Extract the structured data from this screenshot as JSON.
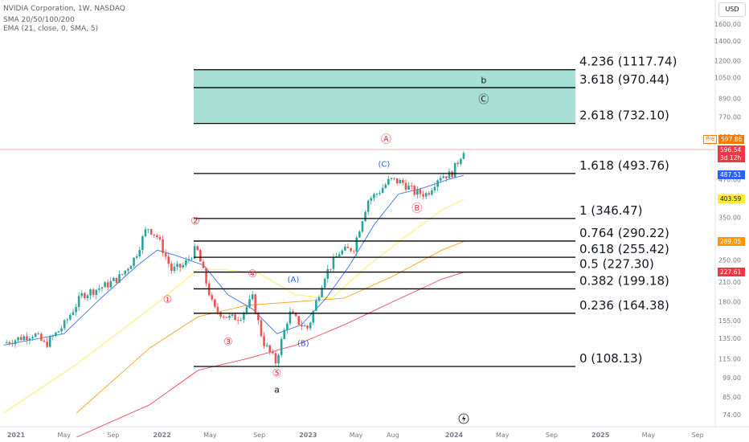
{
  "header": {
    "title": "NVIDIA Corporation, 1W, NASDAQ",
    "indicator1": "SMA 20/50/100/200",
    "indicator2": "EMA (21, close, 0, SMA, 5)"
  },
  "currency": "USD",
  "price_tags": {
    "pre_label": "Pre",
    "pre_value": "597.86",
    "last_value": "596.54",
    "countdown": "3d 12h",
    "sma20": "487.51",
    "sma50": "403.59",
    "sma100": "289.05",
    "sma200": "227.61"
  },
  "colors": {
    "up": "#26a69a",
    "down": "#ef5350",
    "ema21": "#2962ff",
    "sma50": "#ffeb3b",
    "sma100": "#ff9800",
    "sma200": "#f23645",
    "zone_fill": "#a8dfd4",
    "fib_line": "#000000"
  },
  "chart_data": {
    "type": "candlestick",
    "title": "NVIDIA Corporation, 1W, NASDAQ",
    "y_scale": "log",
    "ylim": [
      70,
      1700
    ],
    "y_ticks": [
      1600,
      1400,
      1200,
      1050,
      890,
      770,
      660,
      570,
      470,
      400,
      350,
      290,
      250,
      210,
      180,
      155,
      135,
      115,
      99,
      85,
      74
    ],
    "x_ticks": [
      "2021",
      "May",
      "Sep",
      "2022",
      "May",
      "Sep",
      "2023",
      "May",
      "Aug",
      "2024",
      "May",
      "Sep",
      "2025",
      "May",
      "Sep"
    ],
    "x_tick_dates": [
      "2021-01-01",
      "2021-05-01",
      "2021-09-01",
      "2022-01-01",
      "2022-05-01",
      "2022-09-01",
      "2023-01-01",
      "2023-05-01",
      "2023-08-01",
      "2024-01-01",
      "2024-05-01",
      "2024-09-01",
      "2025-01-01",
      "2025-05-01",
      "2025-09-01"
    ],
    "fib_levels": [
      {
        "ratio": "4.236",
        "value": 1117.74,
        "label": "4.236 (1117.74)"
      },
      {
        "ratio": "3.618",
        "value": 970.44,
        "label": "3.618 (970.44)"
      },
      {
        "ratio": "2.618",
        "value": 732.1,
        "label": "2.618 (732.10)"
      },
      {
        "ratio": "1.618",
        "value": 493.76,
        "label": "1.618 (493.76)"
      },
      {
        "ratio": "1",
        "value": 346.47,
        "label": "1 (346.47)"
      },
      {
        "ratio": "0.764",
        "value": 290.22,
        "label": "0.764 (290.22)"
      },
      {
        "ratio": "0.618",
        "value": 255.42,
        "label": "0.618 (255.42)"
      },
      {
        "ratio": "0.5",
        "value": 227.3,
        "label": "0.5 (227.30)"
      },
      {
        "ratio": "0.382",
        "value": 199.18,
        "label": "0.382 (199.18)"
      },
      {
        "ratio": "0.236",
        "value": 164.38,
        "label": "0.236 (164.38)"
      },
      {
        "ratio": "0",
        "value": 108.13,
        "label": "0 (108.13)"
      }
    ],
    "target_zone": [
      732.1,
      1117.74
    ],
    "wave_labels": [
      {
        "text": "①",
        "date": "2022-01-15",
        "price": 178,
        "style": "red"
      },
      {
        "text": "②",
        "date": "2022-03-25",
        "price": 330,
        "style": "red"
      },
      {
        "text": "③",
        "date": "2022-06-15",
        "price": 128,
        "style": "red"
      },
      {
        "text": "④",
        "date": "2022-08-15",
        "price": 218,
        "style": "red"
      },
      {
        "text": "⑤",
        "date": "2022-10-15",
        "price": 100,
        "style": "red"
      },
      {
        "text": "a",
        "date": "2022-10-15",
        "price": 88,
        "style": "black"
      },
      {
        "text": "(A)",
        "date": "2022-11-25",
        "price": 210,
        "style": "blue"
      },
      {
        "text": "(B)",
        "date": "2022-12-20",
        "price": 127,
        "style": "blue"
      },
      {
        "text": "(C)",
        "date": "2023-07-10",
        "price": 520,
        "style": "blue"
      },
      {
        "text": "Ⓐ",
        "date": "2023-07-15",
        "price": 630,
        "style": "red"
      },
      {
        "text": "Ⓑ",
        "date": "2023-09-30",
        "price": 365,
        "style": "red"
      },
      {
        "text": "b",
        "date": "2024-03-15",
        "price": 1005,
        "style": "black"
      },
      {
        "text": "Ⓒ",
        "date": "2024-03-15",
        "price": 860,
        "style": "gray"
      }
    ],
    "anchor_points": [
      {
        "date": "2020-12-01",
        "close": 130
      },
      {
        "date": "2021-02-15",
        "close": 140
      },
      {
        "date": "2021-03-15",
        "close": 128
      },
      {
        "date": "2021-05-01",
        "close": 150
      },
      {
        "date": "2021-06-15",
        "close": 190
      },
      {
        "date": "2021-08-15",
        "close": 205
      },
      {
        "date": "2021-09-20",
        "close": 220
      },
      {
        "date": "2021-10-25",
        "close": 255
      },
      {
        "date": "2021-11-25",
        "close": 325
      },
      {
        "date": "2021-12-20",
        "close": 300
      },
      {
        "date": "2022-01-25",
        "close": 230
      },
      {
        "date": "2022-02-25",
        "close": 240
      },
      {
        "date": "2022-03-28",
        "close": 275
      },
      {
        "date": "2022-05-10",
        "close": 170
      },
      {
        "date": "2022-06-20",
        "close": 158
      },
      {
        "date": "2022-07-15",
        "close": 160
      },
      {
        "date": "2022-08-15",
        "close": 185
      },
      {
        "date": "2022-09-10",
        "close": 132
      },
      {
        "date": "2022-10-12",
        "close": 112
      },
      {
        "date": "2022-11-15",
        "close": 165
      },
      {
        "date": "2022-12-15",
        "close": 150
      },
      {
        "date": "2023-01-01",
        "close": 146
      },
      {
        "date": "2023-02-10",
        "close": 220
      },
      {
        "date": "2023-03-20",
        "close": 265
      },
      {
        "date": "2023-04-25",
        "close": 275
      },
      {
        "date": "2023-05-30",
        "close": 400
      },
      {
        "date": "2023-06-25",
        "close": 425
      },
      {
        "date": "2023-07-25",
        "close": 470
      },
      {
        "date": "2023-08-25",
        "close": 460
      },
      {
        "date": "2023-09-25",
        "close": 425
      },
      {
        "date": "2023-10-25",
        "close": 420
      },
      {
        "date": "2023-11-25",
        "close": 485
      },
      {
        "date": "2023-12-25",
        "close": 490
      },
      {
        "date": "2024-01-10",
        "close": 540
      },
      {
        "date": "2024-01-25",
        "close": 597
      }
    ],
    "sma50": [
      {
        "date": "2020-12-01",
        "value": 75
      },
      {
        "date": "2021-06-01",
        "value": 110
      },
      {
        "date": "2021-12-01",
        "value": 170
      },
      {
        "date": "2022-04-01",
        "value": 232
      },
      {
        "date": "2022-06-01",
        "value": 232
      },
      {
        "date": "2022-09-01",
        "value": 225
      },
      {
        "date": "2022-12-01",
        "value": 190
      },
      {
        "date": "2023-03-01",
        "value": 185
      },
      {
        "date": "2023-06-01",
        "value": 240
      },
      {
        "date": "2023-09-01",
        "value": 300
      },
      {
        "date": "2023-12-01",
        "value": 370
      },
      {
        "date": "2024-01-25",
        "value": 403
      }
    ],
    "sma100": [
      {
        "date": "2021-06-01",
        "value": 75
      },
      {
        "date": "2021-12-01",
        "value": 125
      },
      {
        "date": "2022-04-01",
        "value": 160
      },
      {
        "date": "2022-08-01",
        "value": 175
      },
      {
        "date": "2022-12-01",
        "value": 180
      },
      {
        "date": "2023-04-01",
        "value": 185
      },
      {
        "date": "2023-08-01",
        "value": 220
      },
      {
        "date": "2023-12-01",
        "value": 270
      },
      {
        "date": "2024-01-25",
        "value": 289
      }
    ],
    "sma200": [
      {
        "date": "2021-06-01",
        "value": 62
      },
      {
        "date": "2021-12-01",
        "value": 80
      },
      {
        "date": "2022-04-01",
        "value": 105
      },
      {
        "date": "2022-08-01",
        "value": 115
      },
      {
        "date": "2022-12-01",
        "value": 128
      },
      {
        "date": "2023-04-01",
        "value": 150
      },
      {
        "date": "2023-08-01",
        "value": 180
      },
      {
        "date": "2023-12-01",
        "value": 215
      },
      {
        "date": "2024-01-25",
        "value": 227
      }
    ],
    "ema21": [
      {
        "date": "2020-12-01",
        "value": 128
      },
      {
        "date": "2021-05-01",
        "value": 140
      },
      {
        "date": "2021-08-01",
        "value": 185
      },
      {
        "date": "2021-11-01",
        "value": 240
      },
      {
        "date": "2021-12-20",
        "value": 270
      },
      {
        "date": "2022-02-01",
        "value": 260
      },
      {
        "date": "2022-04-15",
        "value": 240
      },
      {
        "date": "2022-06-15",
        "value": 190
      },
      {
        "date": "2022-08-15",
        "value": 170
      },
      {
        "date": "2022-10-15",
        "value": 140
      },
      {
        "date": "2022-12-15",
        "value": 150
      },
      {
        "date": "2023-02-15",
        "value": 185
      },
      {
        "date": "2023-04-15",
        "value": 240
      },
      {
        "date": "2023-06-15",
        "value": 330
      },
      {
        "date": "2023-08-15",
        "value": 420
      },
      {
        "date": "2023-10-15",
        "value": 440
      },
      {
        "date": "2023-12-15",
        "value": 470
      },
      {
        "date": "2024-01-25",
        "value": 487
      }
    ]
  }
}
